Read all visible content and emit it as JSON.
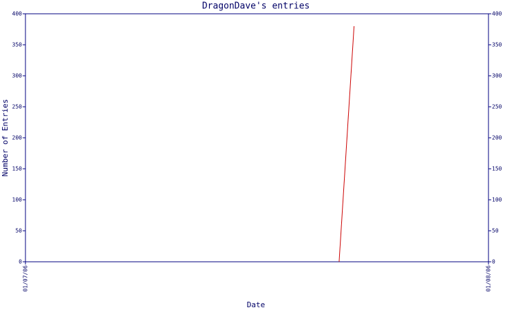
{
  "chart_data": {
    "type": "line",
    "title": "DragonDave's entries",
    "x_label": "Date",
    "y_label": "Number of Entries",
    "x": [
      "22/07/06",
      "23/07/06"
    ],
    "values": [
      0,
      380
    ],
    "color": "#cc0000",
    "xlim": [
      "01/07/06",
      "01/08/06"
    ],
    "xticks": [
      "01/07/06",
      "01/08/06"
    ],
    "ylim": [
      0,
      400
    ],
    "yticks": [
      0,
      50,
      100,
      150,
      200,
      250,
      300,
      350,
      400
    ],
    "y2lim": [
      0,
      400
    ],
    "y2ticks": [
      0,
      50,
      100,
      150,
      200,
      250,
      300,
      350,
      400
    ],
    "axis_color": "#000080"
  }
}
